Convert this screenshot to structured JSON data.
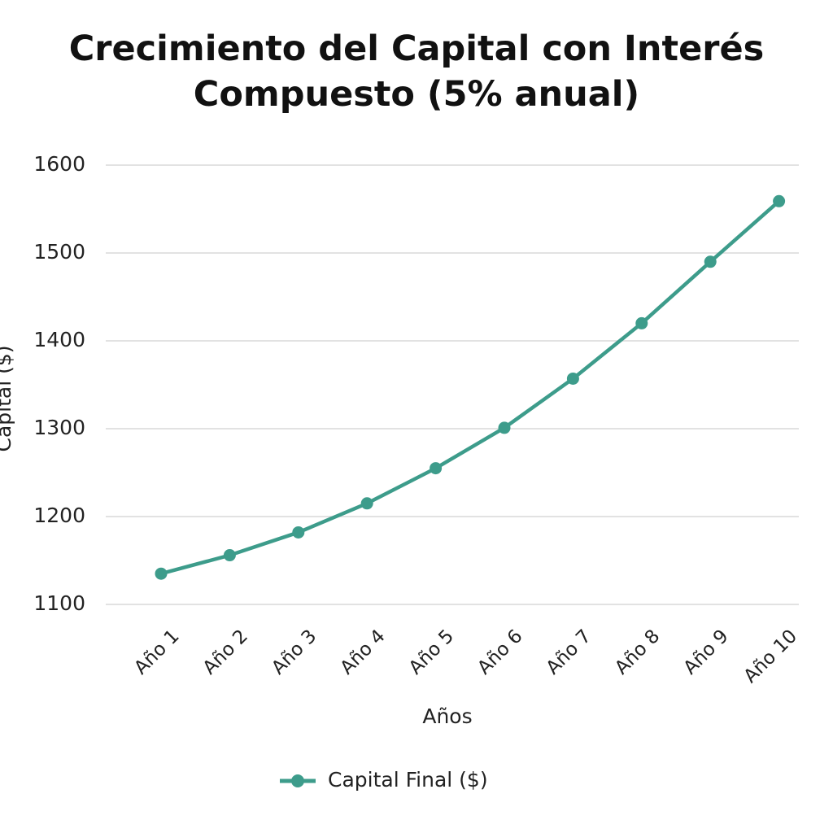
{
  "chart_data": {
    "type": "line",
    "title": "Crecimiento del Capital con Interés Compuesto (5% anual)",
    "x_label": "Años",
    "y_label": "Capital ($)",
    "categories": [
      "Año 1",
      "Año 2",
      "Año 3",
      "Año 4",
      "Año 5",
      "Año 6",
      "Año 7",
      "Año 8",
      "Año 9",
      "Año 10"
    ],
    "series": [
      {
        "name": "Capital Final ($)",
        "color": "#3d9c8b",
        "values": [
          1135,
          1156,
          1182,
          1215,
          1255,
          1301,
          1357,
          1420,
          1490,
          1559
        ]
      }
    ],
    "ylim": [
      1100,
      1600
    ],
    "yticks": [
      1100,
      1200,
      1300,
      1400,
      1500,
      1600
    ],
    "grid": true
  }
}
